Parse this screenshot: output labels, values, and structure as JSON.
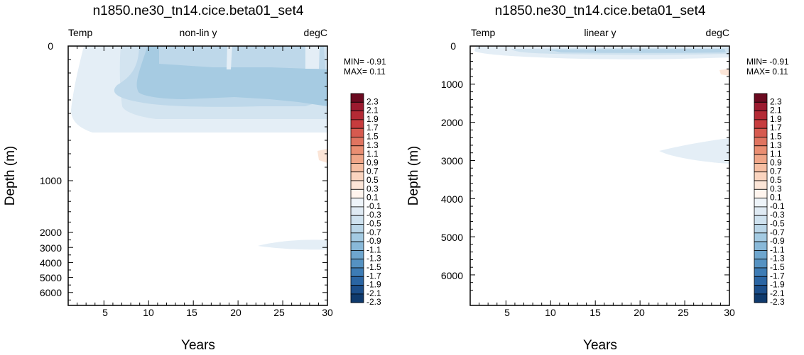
{
  "chart_data": [
    {
      "type": "heatmap",
      "title": "n1850.ne30_tn14.cice.beta01_set4",
      "left_label": "Temp",
      "center_label": "non-lin y",
      "right_label": "degC",
      "xlabel": "Years",
      "ylabel": "Depth (m)",
      "xlim": [
        1,
        30
      ],
      "ylim": [
        0,
        6500
      ],
      "y_scale": "nonlinear",
      "x_ticks": [
        "5",
        "10",
        "15",
        "20",
        "25",
        "30"
      ],
      "y_ticks": [
        "0",
        "1000",
        "2000",
        "3000",
        "4000",
        "5000",
        "6000"
      ],
      "min_label": "MIN= -0.91",
      "max_label": "MAX=  0.11",
      "levels": [
        "2.3",
        "2.1",
        "1.9",
        "1.7",
        "1.5",
        "1.3",
        "1.1",
        "0.9",
        "0.7",
        "0.5",
        "0.3",
        "0.1",
        "-0.1",
        "-0.3",
        "-0.5",
        "-0.7",
        "-0.9",
        "-1.1",
        "-1.3",
        "-1.5",
        "-1.7",
        "-1.9",
        "-2.1",
        "-2.3"
      ],
      "colors": [
        "#6b0a20",
        "#9c1a2f",
        "#b42a35",
        "#c73c3e",
        "#d65a4f",
        "#e07460",
        "#ea8e72",
        "#f0a688",
        "#f6bfa3",
        "#fad4bf",
        "#fce5d7",
        "#fff5ee",
        "#eef4f9",
        "#dfeaf3",
        "#cfe2ef",
        "#bad6e8",
        "#a3cae2",
        "#89b9d9",
        "#6ea6ce",
        "#5592c2",
        "#3d7cb5",
        "#2a65a3",
        "#1b4e8a",
        "#0f3a6d"
      ]
    },
    {
      "type": "heatmap",
      "title": "n1850.ne30_tn14.cice.beta01_set4",
      "left_label": "Temp",
      "center_label": "linear y",
      "right_label": "degC",
      "xlabel": "Years",
      "ylabel": "Depth (m)",
      "xlim": [
        1,
        30
      ],
      "ylim": [
        0,
        6800
      ],
      "y_scale": "linear",
      "x_ticks": [
        "5",
        "10",
        "15",
        "20",
        "25",
        "30"
      ],
      "y_ticks": [
        "0",
        "1000",
        "2000",
        "3000",
        "4000",
        "5000",
        "6000"
      ],
      "min_label": "MIN= -0.91",
      "max_label": "MAX=  0.11",
      "levels": [
        "2.3",
        "2.1",
        "1.9",
        "1.7",
        "1.5",
        "1.3",
        "1.1",
        "0.9",
        "0.7",
        "0.5",
        "0.3",
        "0.1",
        "-0.1",
        "-0.3",
        "-0.5",
        "-0.7",
        "-0.9",
        "-1.1",
        "-1.3",
        "-1.5",
        "-1.7",
        "-1.9",
        "-2.1",
        "-2.3"
      ],
      "colors": [
        "#6b0a20",
        "#9c1a2f",
        "#b42a35",
        "#c73c3e",
        "#d65a4f",
        "#e07460",
        "#ea8e72",
        "#f0a688",
        "#f6bfa3",
        "#fad4bf",
        "#fce5d7",
        "#fff5ee",
        "#eef4f9",
        "#dfeaf3",
        "#cfe2ef",
        "#bad6e8",
        "#a3cae2",
        "#89b9d9",
        "#6ea6ce",
        "#5592c2",
        "#3d7cb5",
        "#2a65a3",
        "#1b4e8a",
        "#0f3a6d"
      ]
    }
  ]
}
